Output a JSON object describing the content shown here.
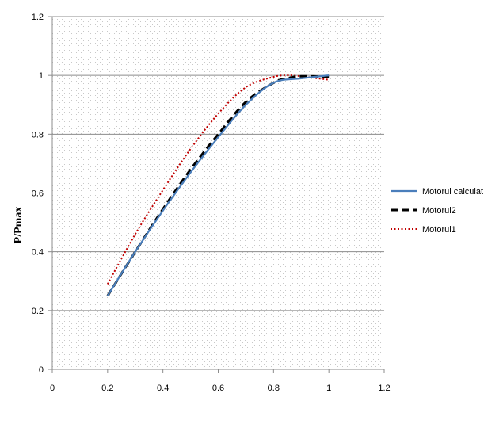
{
  "chart_data": {
    "type": "line",
    "title": "",
    "xlabel": "",
    "ylabel": "P/Pmax",
    "xlim": [
      0,
      1.2
    ],
    "ylim": [
      0,
      1.2
    ],
    "xticks": [
      "0",
      "0.2",
      "0.4",
      "0.6",
      "0.8",
      "1",
      "1.2"
    ],
    "yticks": [
      "0",
      "0.2",
      "0.4",
      "0.6",
      "0.8",
      "1",
      "1.2"
    ],
    "grid": "horizontal",
    "legend_position": "right",
    "series": [
      {
        "name": "Motorul calculat",
        "color": "#4a7ebb",
        "style": "solid",
        "x": [
          0.2,
          0.3,
          0.4,
          0.5,
          0.6,
          0.7,
          0.8,
          0.9,
          1.0
        ],
        "y": [
          0.25,
          0.4,
          0.54,
          0.67,
          0.79,
          0.9,
          0.975,
          0.99,
          1.0
        ]
      },
      {
        "name": "Motorul2",
        "color": "#000000",
        "style": "dashed",
        "x": [
          0.2,
          0.3,
          0.4,
          0.5,
          0.6,
          0.7,
          0.8,
          0.85,
          0.9,
          1.0
        ],
        "y": [
          0.25,
          0.4,
          0.545,
          0.68,
          0.8,
          0.91,
          0.975,
          0.99,
          0.997,
          0.995
        ]
      },
      {
        "name": "Motorul1",
        "color": "#c00000",
        "style": "dotted",
        "x": [
          0.2,
          0.3,
          0.4,
          0.5,
          0.6,
          0.7,
          0.8,
          0.85,
          0.9,
          1.0
        ],
        "y": [
          0.29,
          0.46,
          0.61,
          0.75,
          0.87,
          0.96,
          0.995,
          1.0,
          0.997,
          0.985
        ]
      }
    ]
  }
}
